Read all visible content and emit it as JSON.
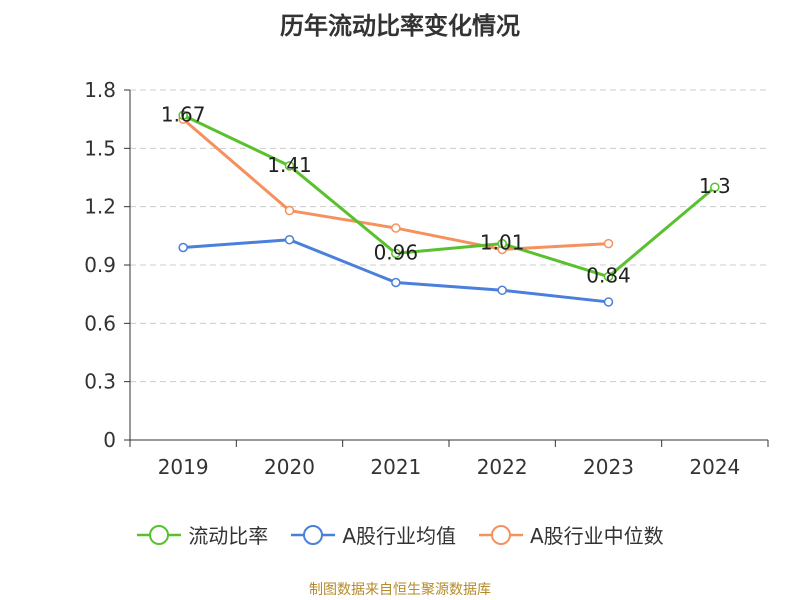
{
  "chart_data": {
    "type": "line",
    "title": "历年流动比率变化情况",
    "categories": [
      "2019",
      "2020",
      "2021",
      "2022",
      "2023",
      "2024"
    ],
    "ylim": [
      0,
      1.8
    ],
    "yticks": [
      0,
      0.3,
      0.6,
      0.9,
      1.2,
      1.5,
      1.8
    ],
    "ytick_labels": [
      "0",
      "0.3",
      "0.6",
      "0.9",
      "1.2",
      "1.5",
      "1.8"
    ],
    "grid": true,
    "legend_position": "bottom",
    "series": [
      {
        "name": "流动比率",
        "color": "#5ac12e",
        "values": [
          1.67,
          1.41,
          0.96,
          1.01,
          0.84,
          1.3
        ],
        "labels": [
          "1.67",
          "1.41",
          "0.96",
          "1.01",
          "0.84",
          "1.3"
        ]
      },
      {
        "name": "A股行业均值",
        "color": "#4a7fdb",
        "values": [
          0.99,
          1.03,
          0.81,
          0.77,
          0.71,
          null
        ]
      },
      {
        "name": "A股行业中位数",
        "color": "#f5915e",
        "values": [
          1.65,
          1.18,
          1.09,
          0.98,
          1.01,
          null
        ]
      }
    ]
  },
  "source_note": "制图数据来自恒生聚源数据库"
}
